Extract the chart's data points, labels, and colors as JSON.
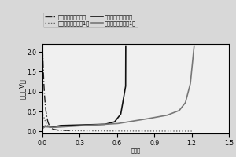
{
  "title": "",
  "xlabel": "比容量",
  "ylabel": "电压（V）",
  "xlim": [
    0.0,
    1.5
  ],
  "ylim": [
    -0.05,
    2.2
  ],
  "xticks": [
    0.0,
    0.3,
    0.6,
    0.9,
    1.2,
    1.5
  ],
  "yticks": [
    0.0,
    0.5,
    1.0,
    1.5,
    2.0
  ],
  "legend": [
    {
      "label": "首次放电（对照组）",
      "color": "#222222",
      "linestyle": "dashdot",
      "lw": 1.0
    },
    {
      "label": "首次放电（实施例1）",
      "color": "#666666",
      "linestyle": "dotted",
      "lw": 1.0
    },
    {
      "label": "首次充电（对照组）",
      "color": "#111111",
      "linestyle": "solid",
      "lw": 1.2
    },
    {
      "label": "首次充电（实施例1）",
      "color": "#777777",
      "linestyle": "solid",
      "lw": 1.2
    }
  ],
  "bg_color": "#d8d8d8",
  "axes_bg": "#f0f0f0"
}
